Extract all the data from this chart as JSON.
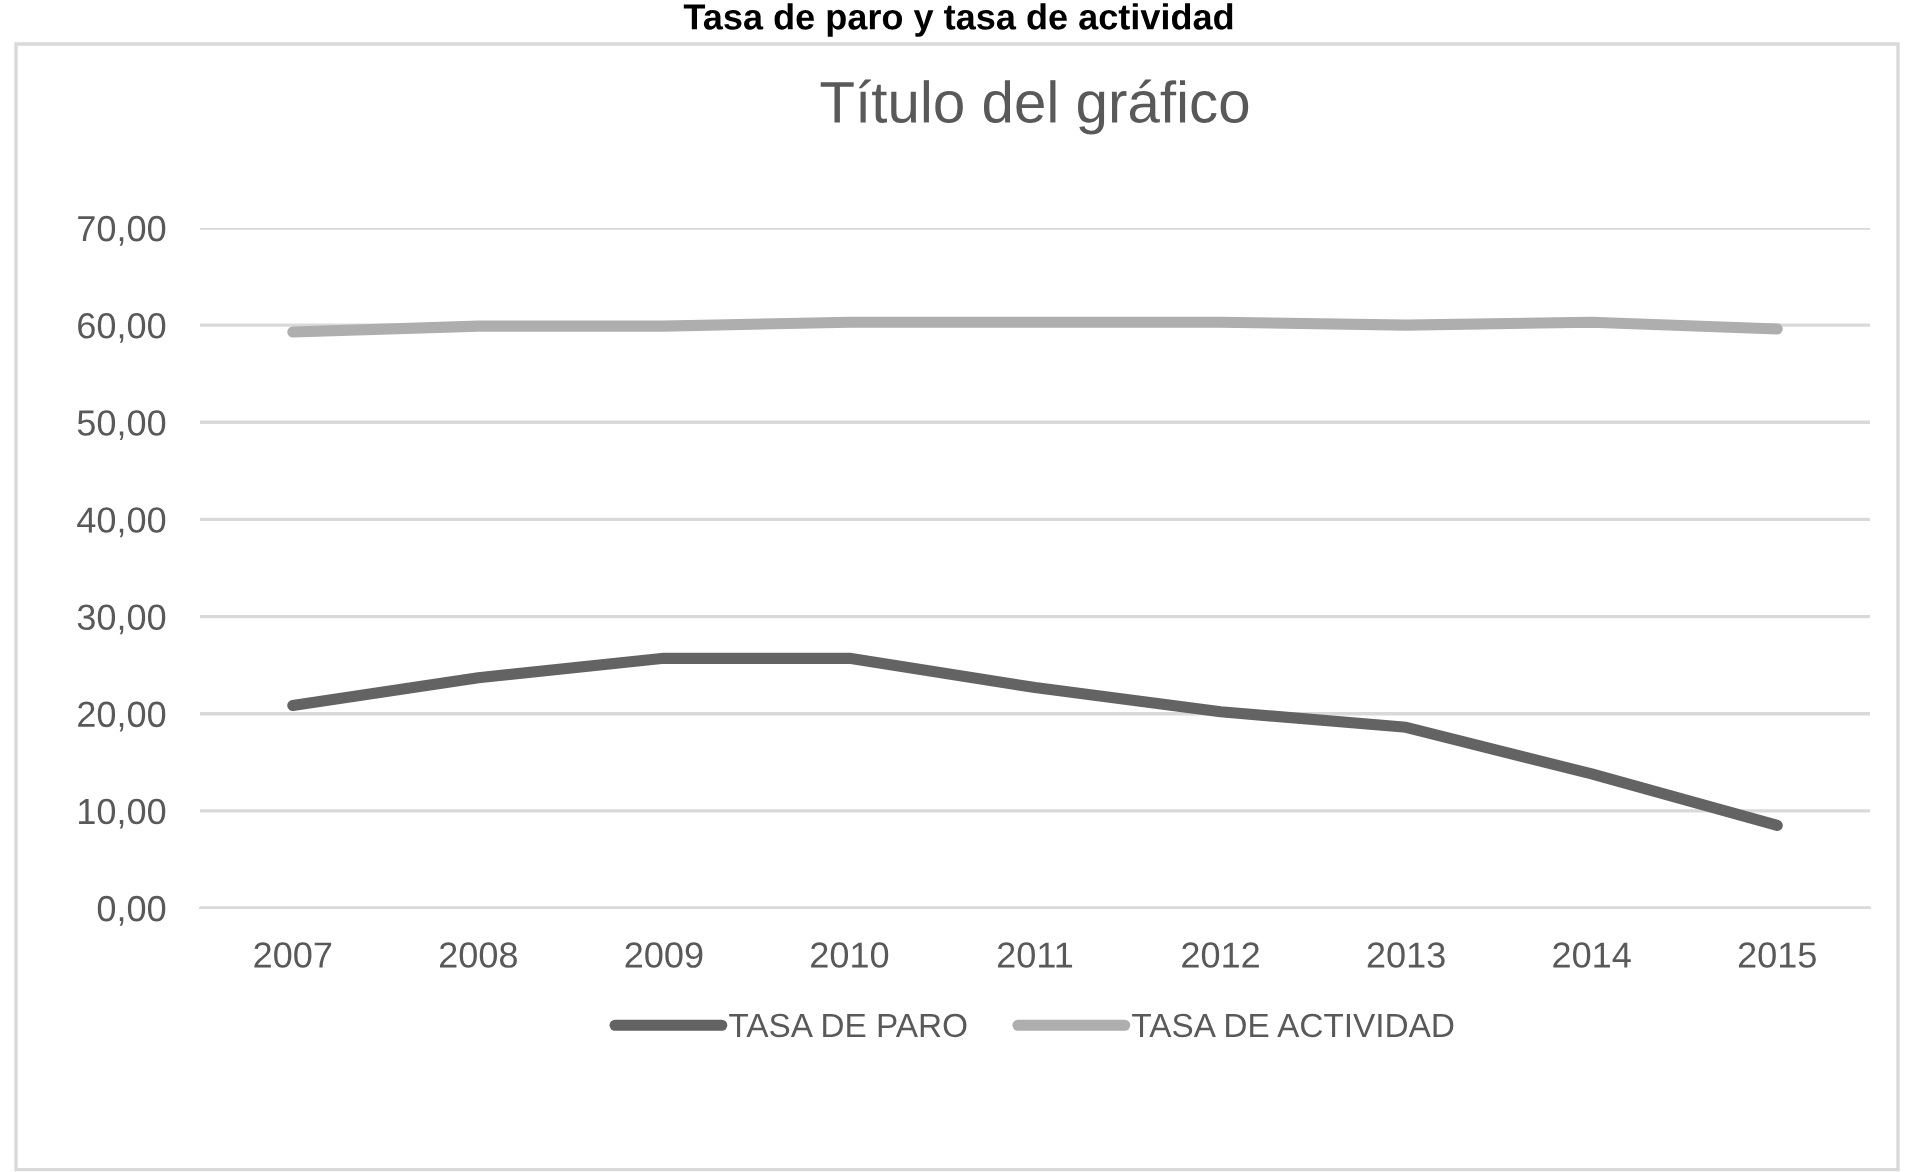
{
  "chart_data": {
    "type": "line",
    "title": "Título del gráfico",
    "annotations": [
      "Tasa de paro y tasa de actividad"
    ],
    "categories": [
      "2007",
      "2008",
      "2009",
      "2010",
      "2011",
      "2012",
      "2013",
      "2014",
      "2015"
    ],
    "series": [
      {
        "name": "TASA DE PARO",
        "color": "#636363",
        "values": [
          20.85,
          23.7,
          25.7,
          25.7,
          22.7,
          20.2,
          18.6,
          13.8,
          8.5
        ]
      },
      {
        "name": "TASA DE ACTIVIDAD",
        "color": "#aeaeae",
        "values": [
          59.3,
          59.9,
          59.9,
          60.3,
          60.3,
          60.3,
          60.0,
          60.3,
          59.6
        ]
      }
    ],
    "ylim": [
      0,
      70
    ],
    "yticks": [
      {
        "value": 0,
        "label": "0,00"
      },
      {
        "value": 10,
        "label": "10,00"
      },
      {
        "value": 20,
        "label": "20,00"
      },
      {
        "value": 30,
        "label": "30,00"
      },
      {
        "value": 40,
        "label": "40,00"
      },
      {
        "value": 50,
        "label": "50,00"
      },
      {
        "value": 60,
        "label": "60,00"
      },
      {
        "value": 70,
        "label": "70,00"
      }
    ],
    "grid": "y",
    "legend": "bottom",
    "marker": "none",
    "line_style": "solid"
  }
}
